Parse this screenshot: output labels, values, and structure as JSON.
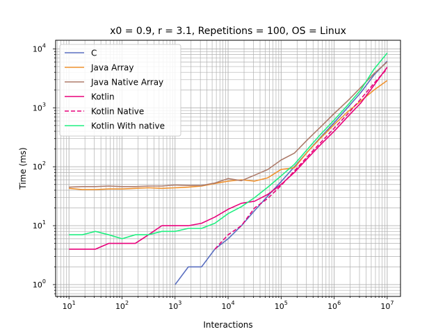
{
  "chart_data": {
    "type": "line",
    "title": "x0 = 0.9, r = 3.1, Repetitions = 100, OS = Linux",
    "xlabel": "Interactions",
    "ylabel": "Time (ms)",
    "xscale": "log",
    "yscale": "log",
    "xlim": [
      5.6,
      17800000
    ],
    "ylim": [
      0.63,
      14000
    ],
    "xticks": [
      {
        "mant": "10",
        "exp": "1"
      },
      {
        "mant": "10",
        "exp": "2"
      },
      {
        "mant": "10",
        "exp": "3"
      },
      {
        "mant": "10",
        "exp": "4"
      },
      {
        "mant": "10",
        "exp": "5"
      },
      {
        "mant": "10",
        "exp": "6"
      },
      {
        "mant": "10",
        "exp": "7"
      }
    ],
    "yticks": [
      {
        "mant": "10",
        "exp": "0"
      },
      {
        "mant": "10",
        "exp": "1"
      },
      {
        "mant": "10",
        "exp": "2"
      },
      {
        "mant": "10",
        "exp": "3"
      },
      {
        "mant": "10",
        "exp": "4"
      }
    ],
    "grid": "major and minor",
    "legend_position": "upper-left",
    "series": [
      {
        "name": "C",
        "color": "#5a6fc0",
        "dash": "solid",
        "x": [
          1000,
          1780,
          3160,
          5620,
          10000,
          17800,
          31600,
          56200,
          100000,
          178000,
          316000,
          562000,
          1000000,
          1780000,
          3160000,
          5620000,
          10000000
        ],
        "y": [
          1,
          2,
          2,
          4,
          6,
          10,
          18,
          32,
          56,
          100,
          180,
          320,
          560,
          1000,
          1800,
          3600,
          6200
        ]
      },
      {
        "name": "Java Array",
        "color": "#f0922e",
        "dash": "solid",
        "x": [
          10,
          17.8,
          31.6,
          56.2,
          100,
          178,
          316,
          562,
          1000,
          1780,
          3160,
          5620,
          10000,
          17800,
          31600,
          56200,
          100000,
          178000,
          316000,
          562000,
          1000000,
          1780000,
          3160000,
          5620000,
          10000000
        ],
        "y": [
          43,
          41,
          41,
          42,
          42,
          43,
          44,
          43,
          44,
          45,
          47,
          52,
          57,
          60,
          57,
          65,
          90,
          96,
          180,
          310,
          520,
          850,
          1300,
          2000,
          2900
        ]
      },
      {
        "name": "Java Native Array",
        "color": "#ad7b6a",
        "dash": "solid",
        "x": [
          10,
          17.8,
          31.6,
          56.2,
          100,
          178,
          316,
          562,
          1000,
          1780,
          3160,
          5620,
          10000,
          17800,
          31600,
          56200,
          100000,
          178000,
          316000,
          562000,
          1000000,
          1780000,
          3160000,
          5620000,
          10000000
        ],
        "y": [
          45,
          46,
          46,
          47,
          46,
          46,
          47,
          47,
          49,
          48,
          48,
          53,
          63,
          58,
          72,
          90,
          130,
          170,
          290,
          480,
          800,
          1300,
          2200,
          3800,
          6000
        ]
      },
      {
        "name": "Kotlin",
        "color": "#e8007a",
        "dash": "solid",
        "x": [
          10,
          17.8,
          31.6,
          56.2,
          100,
          178,
          316,
          562,
          1000,
          1780,
          3160,
          5620,
          10000,
          17800,
          31600,
          56200,
          100000,
          178000,
          316000,
          562000,
          1000000,
          1780000,
          3160000,
          5620000,
          10000000
        ],
        "y": [
          4,
          4,
          4,
          5,
          5,
          5,
          7,
          10,
          10,
          10,
          11,
          14,
          19,
          24,
          26,
          34,
          50,
          80,
          140,
          240,
          400,
          700,
          1200,
          2400,
          4900
        ]
      },
      {
        "name": "Kotlin Native",
        "color": "#e8007a",
        "dash": "dashed",
        "x": [
          5620,
          10000,
          17800,
          31600,
          56200,
          100000,
          178000,
          316000,
          562000,
          1000000,
          1780000,
          3160000,
          5620000,
          10000000
        ],
        "y": [
          4,
          7,
          10,
          20,
          29,
          48,
          85,
          150,
          260,
          450,
          780,
          1400,
          2600,
          4600
        ]
      },
      {
        "name": "Kotlin With native",
        "color": "#1fef80",
        "dash": "solid",
        "x": [
          10,
          17.8,
          31.6,
          56.2,
          100,
          178,
          316,
          562,
          1000,
          1780,
          3160,
          5620,
          10000,
          17800,
          31600,
          56200,
          100000,
          178000,
          316000,
          562000,
          1000000,
          1780000,
          3160000,
          5620000,
          10000000
        ],
        "y": [
          7,
          7,
          8,
          7,
          6,
          7,
          7,
          8,
          8,
          9,
          9,
          11,
          16,
          21,
          30,
          45,
          70,
          110,
          200,
          360,
          620,
          1100,
          2000,
          4500,
          8500
        ]
      }
    ]
  }
}
